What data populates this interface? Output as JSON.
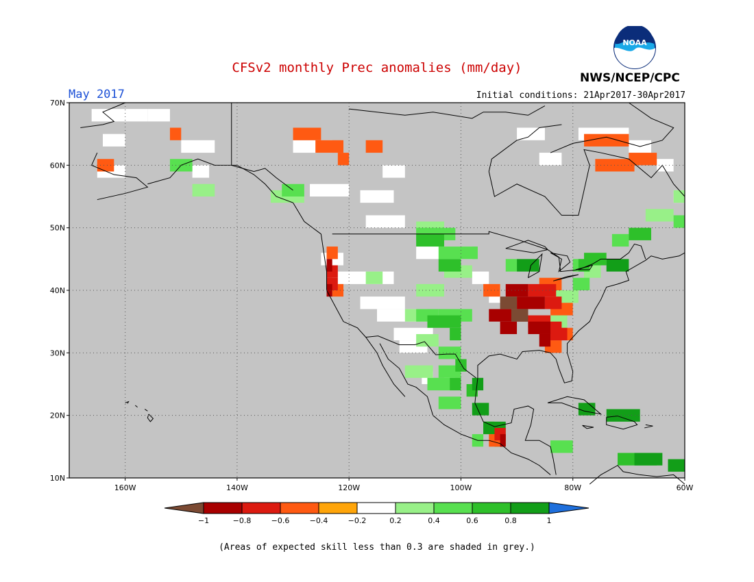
{
  "title": "CFSv2 monthly Prec anomalies (mm/day)",
  "month": "May 2017",
  "initial_conditions": "Initial conditions: 21Apr2017-30Apr2017",
  "agency": "NWS/NCEP/CPC",
  "logo_text": "NOAA",
  "footnote": "(Areas of expected skill less than 0.3 are shaded in grey.)",
  "map": {
    "lon_range": [
      -170,
      -60
    ],
    "lat_range": [
      10,
      70
    ],
    "lat_ticks": [
      {
        "value": 70,
        "label": "70N"
      },
      {
        "value": 60,
        "label": "60N"
      },
      {
        "value": 50,
        "label": "50N"
      },
      {
        "value": 40,
        "label": "40N"
      },
      {
        "value": 30,
        "label": "30N"
      },
      {
        "value": 20,
        "label": "20N"
      },
      {
        "value": 10,
        "label": "10N"
      }
    ],
    "lon_ticks": [
      {
        "value": -160,
        "label": "160W"
      },
      {
        "value": -140,
        "label": "140W"
      },
      {
        "value": -120,
        "label": "120W"
      },
      {
        "value": -100,
        "label": "100W"
      },
      {
        "value": -80,
        "label": "80W"
      },
      {
        "value": -60,
        "label": "60W"
      }
    ],
    "grid": true,
    "background_color": "#c4c4c4",
    "regions": [
      {
        "cat": 5,
        "cells": [
          [
            -166,
            68,
            -156,
            68
          ],
          [
            -156,
            68,
            -152,
            68
          ],
          [
            -164,
            64,
            -160,
            64
          ],
          [
            -165,
            59,
            -160,
            59
          ],
          [
            -148,
            59,
            -145,
            59
          ],
          [
            -150,
            63,
            -144,
            63
          ],
          [
            -127,
            56,
            -120,
            56
          ],
          [
            -118,
            55,
            -112,
            55
          ],
          [
            -117,
            51,
            -110,
            51
          ],
          [
            -114,
            59,
            -110,
            59
          ],
          [
            -130,
            63,
            -123,
            63
          ],
          [
            -123,
            42,
            -112,
            42
          ],
          [
            -125,
            45,
            -121,
            45
          ],
          [
            -118,
            38,
            -110,
            38
          ],
          [
            -115,
            36,
            -106,
            36
          ],
          [
            -112,
            33,
            -105,
            33
          ],
          [
            -111,
            31,
            -106,
            31
          ],
          [
            -108,
            46,
            -98,
            46
          ],
          [
            -98,
            42,
            -95,
            42
          ],
          [
            -95,
            39,
            -93,
            39
          ],
          [
            -107,
            26,
            -105,
            26
          ],
          [
            -103,
            26,
            -101,
            26
          ],
          [
            -90,
            65,
            -85,
            65
          ],
          [
            -86,
            61,
            -82,
            61
          ],
          [
            -79,
            65,
            -70,
            65
          ],
          [
            -70,
            63,
            -66,
            63
          ],
          [
            -65,
            60,
            -62,
            60
          ],
          [
            -62,
            55,
            -60,
            55
          ]
        ]
      },
      {
        "cat": 6,
        "cells": [
          [
            -148,
            56,
            -144,
            56
          ],
          [
            -134,
            55,
            -128,
            55
          ],
          [
            -108,
            50,
            -103,
            50
          ],
          [
            -103,
            43,
            -98,
            43
          ],
          [
            -117,
            42,
            -114,
            42
          ],
          [
            -108,
            40,
            -103,
            40
          ],
          [
            -110,
            36,
            -106,
            36
          ],
          [
            -108,
            32,
            -104,
            32
          ],
          [
            -110,
            27,
            -105,
            27
          ],
          [
            -104,
            25,
            -101,
            25
          ],
          [
            -84,
            39,
            -79,
            39
          ],
          [
            -84,
            35,
            -81,
            35
          ],
          [
            -67,
            52,
            -62,
            52
          ],
          [
            -62,
            55,
            -60,
            55
          ],
          [
            -78,
            43,
            -75,
            43
          ]
        ]
      },
      {
        "cat": 7,
        "cells": [
          [
            -132,
            56,
            -128,
            56
          ],
          [
            -152,
            60,
            -148,
            60
          ],
          [
            -108,
            49,
            -101,
            49
          ],
          [
            -104,
            46,
            -97,
            46
          ],
          [
            -108,
            36,
            -104,
            36
          ],
          [
            -104,
            36,
            -98,
            36
          ],
          [
            -104,
            30,
            -100,
            30
          ],
          [
            -104,
            27,
            -100,
            27
          ],
          [
            -106,
            25,
            -102,
            25
          ],
          [
            -104,
            22,
            -100,
            22
          ],
          [
            -98,
            16,
            -96,
            16
          ],
          [
            -80,
            44,
            -77,
            44
          ],
          [
            -73,
            48,
            -70,
            48
          ],
          [
            -62,
            51,
            -60,
            51
          ],
          [
            -92,
            44,
            -90,
            44
          ],
          [
            -80,
            41,
            -77,
            41
          ],
          [
            -84,
            15,
            -80,
            15
          ]
        ]
      },
      {
        "cat": 8,
        "cells": [
          [
            -108,
            48,
            -103,
            48
          ],
          [
            -104,
            44,
            -100,
            44
          ],
          [
            -106,
            35,
            -100,
            35
          ],
          [
            -102,
            33,
            -100,
            33
          ],
          [
            -101,
            28,
            -99,
            28
          ],
          [
            -102,
            25,
            -100,
            25
          ],
          [
            -99,
            24,
            -97,
            24
          ],
          [
            -96,
            18,
            -94,
            18
          ],
          [
            -78,
            45,
            -74,
            45
          ],
          [
            -70,
            49,
            -66,
            49
          ],
          [
            -79,
            44,
            -77,
            44
          ],
          [
            -72,
            13,
            -65,
            13
          ]
        ]
      },
      {
        "cat": 9,
        "cells": [
          [
            -98,
            25,
            -96,
            25
          ],
          [
            -98,
            21,
            -95,
            21
          ],
          [
            -96,
            18,
            -92,
            18
          ],
          [
            -94,
            16,
            -92,
            16
          ],
          [
            -74,
            44,
            -70,
            44
          ],
          [
            -90,
            44,
            -86,
            44
          ],
          [
            -74,
            20,
            -68,
            20
          ],
          [
            -79,
            21,
            -76,
            21
          ],
          [
            -69,
            13,
            -64,
            13
          ],
          [
            -63,
            12,
            -60,
            12
          ]
        ]
      },
      {
        "cat": 3,
        "cells": [
          [
            -165,
            60,
            -162,
            60
          ],
          [
            -152,
            65,
            -150,
            65
          ],
          [
            -130,
            65,
            -125,
            65
          ],
          [
            -126,
            63,
            -121,
            63
          ],
          [
            -122,
            61,
            -120,
            61
          ],
          [
            -117,
            63,
            -114,
            63
          ],
          [
            -78,
            64,
            -70,
            64
          ],
          [
            -70,
            61,
            -65,
            61
          ],
          [
            -76,
            60,
            -69,
            60
          ],
          [
            -124,
            46,
            -122,
            46
          ],
          [
            -123,
            40,
            -121,
            40
          ],
          [
            -96,
            40,
            -93,
            40
          ],
          [
            -86,
            41,
            -82,
            41
          ],
          [
            -84,
            37,
            -80,
            37
          ],
          [
            -84,
            33,
            -80,
            33
          ],
          [
            -85,
            31,
            -82,
            31
          ],
          [
            -95,
            16,
            -92,
            16
          ]
        ]
      },
      {
        "cat": 2,
        "cells": [
          [
            -124,
            43,
            -122,
            43
          ],
          [
            -124,
            41,
            -122,
            41
          ],
          [
            -88,
            40,
            -83,
            40
          ],
          [
            -85,
            38,
            -82,
            38
          ],
          [
            -88,
            35,
            -84,
            35
          ],
          [
            -86,
            34,
            -82,
            34
          ],
          [
            -84,
            33,
            -81,
            33
          ],
          [
            -94,
            17,
            -92,
            17
          ]
        ]
      },
      {
        "cat": 1,
        "cells": [
          [
            -124,
            44,
            -123,
            44
          ],
          [
            -124,
            40,
            -123,
            40
          ],
          [
            -92,
            40,
            -88,
            40
          ],
          [
            -90,
            38,
            -85,
            38
          ],
          [
            -95,
            36,
            -88,
            36
          ],
          [
            -93,
            34,
            -90,
            34
          ],
          [
            -88,
            34,
            -84,
            34
          ],
          [
            -86,
            32,
            -84,
            32
          ],
          [
            -93,
            16,
            -92,
            16
          ]
        ]
      },
      {
        "cat": 0,
        "cells": [
          [
            -93,
            38,
            -90,
            38
          ],
          [
            -91,
            36,
            -88,
            36
          ]
        ]
      }
    ]
  },
  "colorbar": {
    "categories": [
      {
        "color": "#7b4a33",
        "label": ""
      },
      {
        "color": "#a80000",
        "label": "−1"
      },
      {
        "color": "#dc1a10",
        "label": "−0.8"
      },
      {
        "color": "#ff5a12",
        "label": "−0.6"
      },
      {
        "color": "#ffa50a",
        "label": "−0.4"
      },
      {
        "color": "#ffffff",
        "label": "−0.2"
      },
      {
        "color": "#98f088",
        "label": "0.2"
      },
      {
        "color": "#58e050",
        "label": "0.4"
      },
      {
        "color": "#2ec02a",
        "label": "0.6"
      },
      {
        "color": "#129e18",
        "label": "0.8"
      },
      {
        "color": "#1e6fdc",
        "label": "1"
      }
    ]
  }
}
